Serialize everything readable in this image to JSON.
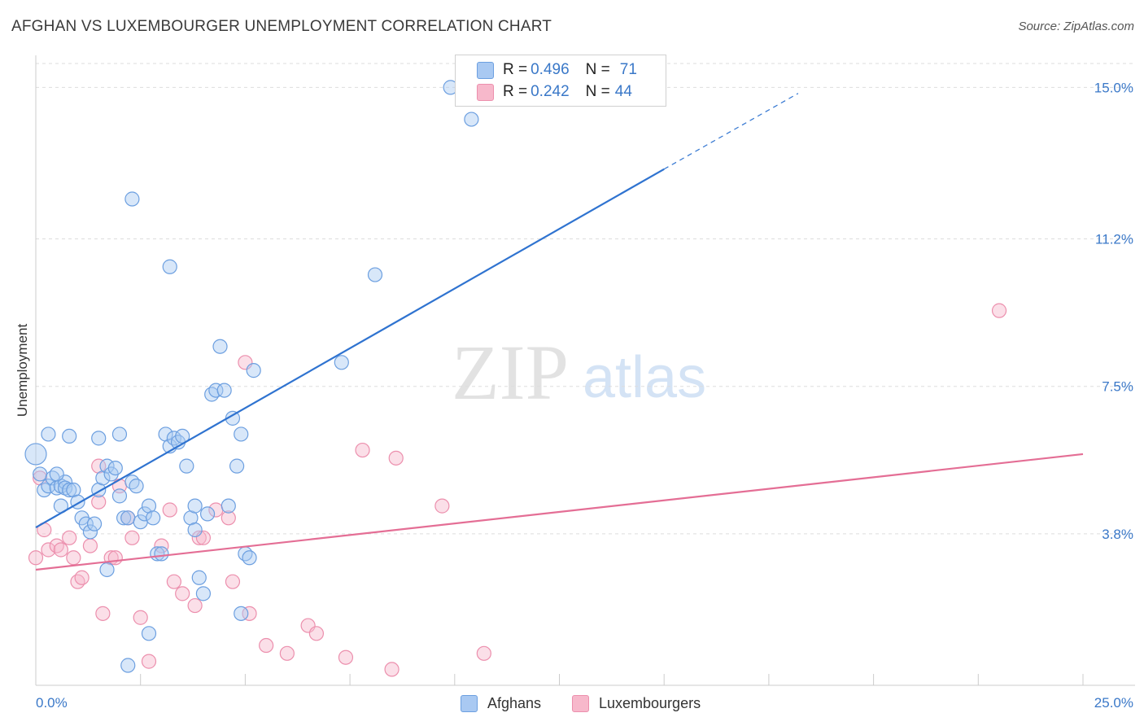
{
  "header": {
    "title": "AFGHAN VS LUXEMBOURGER UNEMPLOYMENT CORRELATION CHART",
    "source": "Source: ZipAtlas.com"
  },
  "legend": {
    "afghans": {
      "r_label": "R = ",
      "r_value": "0.496",
      "n_label": "N = ",
      "n_value": "71"
    },
    "luxembourgers": {
      "r_label": "R = ",
      "r_value": "0.242",
      "n_label": "N = ",
      "n_value": "44"
    }
  },
  "bottom_legend": {
    "afghans": "Afghans",
    "luxembourgers": "Luxembourgers"
  },
  "watermark": {
    "zip": "ZIP",
    "atlas": "atlas"
  },
  "colors": {
    "afghans_fill": "#a9c9f2",
    "afghans_stroke": "#6c9fe0",
    "afghans_line": "#2f73d0",
    "lux_fill": "#f7b8cb",
    "lux_stroke": "#ec8fad",
    "lux_line": "#e46e95",
    "tick_text": "#3a78c8",
    "grid": "#dddddd"
  },
  "chart_data": {
    "type": "scatter",
    "title": "AFGHAN VS LUXEMBOURGER UNEMPLOYMENT CORRELATION CHART",
    "xlabel": "",
    "ylabel": "Unemployment",
    "xlim": [
      0,
      25
    ],
    "ylim": [
      0,
      15.6
    ],
    "x_tick_labels": [
      "0.0%",
      "25.0%"
    ],
    "y_ticks": [
      3.8,
      7.5,
      11.2,
      15.0
    ],
    "y_tick_labels": [
      "3.8%",
      "7.5%",
      "11.2%",
      "15.0%"
    ],
    "grid": "horizontal dashed",
    "legend_position": "top-center",
    "series": [
      {
        "name": "Afghans",
        "r": 0.496,
        "n": 71,
        "trend": {
          "x": [
            0.0,
            15.0,
            18.2
          ],
          "y": [
            3.96,
            12.95,
            14.85
          ],
          "dashed_from_x": 15.0
        },
        "points": [
          [
            0.0,
            5.8
          ],
          [
            0.1,
            5.3
          ],
          [
            0.2,
            4.9
          ],
          [
            0.3,
            5.0
          ],
          [
            0.4,
            5.2
          ],
          [
            0.5,
            4.95
          ],
          [
            0.6,
            5.0
          ],
          [
            0.7,
            5.1
          ],
          [
            0.5,
            5.3
          ],
          [
            0.6,
            4.5
          ],
          [
            0.7,
            4.95
          ],
          [
            0.8,
            4.9
          ],
          [
            0.9,
            4.9
          ],
          [
            1.0,
            4.6
          ],
          [
            1.1,
            4.2
          ],
          [
            1.2,
            4.05
          ],
          [
            1.3,
            3.85
          ],
          [
            1.4,
            4.05
          ],
          [
            1.5,
            4.9
          ],
          [
            1.6,
            5.2
          ],
          [
            1.7,
            5.5
          ],
          [
            1.8,
            5.3
          ],
          [
            1.9,
            5.45
          ],
          [
            2.0,
            4.75
          ],
          [
            2.1,
            4.2
          ],
          [
            2.2,
            4.2
          ],
          [
            2.3,
            5.1
          ],
          [
            2.4,
            5.0
          ],
          [
            2.5,
            4.1
          ],
          [
            2.6,
            4.3
          ],
          [
            2.7,
            4.5
          ],
          [
            2.8,
            4.2
          ],
          [
            2.9,
            3.3
          ],
          [
            3.0,
            3.3
          ],
          [
            3.1,
            6.3
          ],
          [
            3.2,
            6.0
          ],
          [
            3.3,
            6.2
          ],
          [
            3.4,
            6.1
          ],
          [
            3.5,
            6.25
          ],
          [
            3.6,
            5.5
          ],
          [
            3.7,
            4.2
          ],
          [
            3.8,
            3.9
          ],
          [
            3.9,
            2.7
          ],
          [
            4.0,
            2.3
          ],
          [
            4.1,
            4.3
          ],
          [
            4.2,
            7.3
          ],
          [
            4.3,
            7.4
          ],
          [
            4.4,
            8.5
          ],
          [
            4.5,
            7.4
          ],
          [
            4.6,
            4.5
          ],
          [
            4.7,
            6.7
          ],
          [
            4.8,
            5.5
          ],
          [
            4.9,
            1.8
          ],
          [
            5.0,
            3.3
          ],
          [
            5.1,
            3.2
          ],
          [
            1.7,
            2.9
          ],
          [
            2.2,
            0.5
          ],
          [
            2.7,
            1.3
          ],
          [
            3.2,
            10.5
          ],
          [
            3.8,
            4.5
          ],
          [
            4.9,
            6.3
          ],
          [
            2.3,
            12.2
          ],
          [
            5.2,
            7.9
          ],
          [
            7.3,
            8.1
          ],
          [
            8.1,
            10.3
          ],
          [
            9.9,
            15.0
          ],
          [
            10.4,
            14.2
          ],
          [
            0.3,
            6.3
          ],
          [
            0.8,
            6.25
          ],
          [
            1.5,
            6.2
          ],
          [
            2.0,
            6.3
          ]
        ]
      },
      {
        "name": "Luxembourgers",
        "r": 0.242,
        "n": 44,
        "trend": {
          "x": [
            0.0,
            25.0
          ],
          "y": [
            2.9,
            5.8
          ]
        },
        "points": [
          [
            0.1,
            5.2
          ],
          [
            0.2,
            3.9
          ],
          [
            0.3,
            3.4
          ],
          [
            0.5,
            3.5
          ],
          [
            0.6,
            3.4
          ],
          [
            0.8,
            3.7
          ],
          [
            0.9,
            3.2
          ],
          [
            1.0,
            2.6
          ],
          [
            1.1,
            2.7
          ],
          [
            1.3,
            3.5
          ],
          [
            1.5,
            5.5
          ],
          [
            1.5,
            4.6
          ],
          [
            1.6,
            1.8
          ],
          [
            1.8,
            3.2
          ],
          [
            1.9,
            3.2
          ],
          [
            2.0,
            5.0
          ],
          [
            2.2,
            4.2
          ],
          [
            2.3,
            3.7
          ],
          [
            2.5,
            1.7
          ],
          [
            2.7,
            0.6
          ],
          [
            3.0,
            3.5
          ],
          [
            3.2,
            4.4
          ],
          [
            3.3,
            2.6
          ],
          [
            3.5,
            2.3
          ],
          [
            3.8,
            2.0
          ],
          [
            3.9,
            3.7
          ],
          [
            4.0,
            3.7
          ],
          [
            4.3,
            4.4
          ],
          [
            4.6,
            4.2
          ],
          [
            4.7,
            2.6
          ],
          [
            5.0,
            8.1
          ],
          [
            5.1,
            1.8
          ],
          [
            5.5,
            1.0
          ],
          [
            6.0,
            0.8
          ],
          [
            6.5,
            1.5
          ],
          [
            6.7,
            1.3
          ],
          [
            7.4,
            0.7
          ],
          [
            7.8,
            5.9
          ],
          [
            8.5,
            0.4
          ],
          [
            8.6,
            5.7
          ],
          [
            9.7,
            4.5
          ],
          [
            10.7,
            0.8
          ],
          [
            23.0,
            9.4
          ],
          [
            0.0,
            3.2
          ]
        ]
      }
    ]
  }
}
